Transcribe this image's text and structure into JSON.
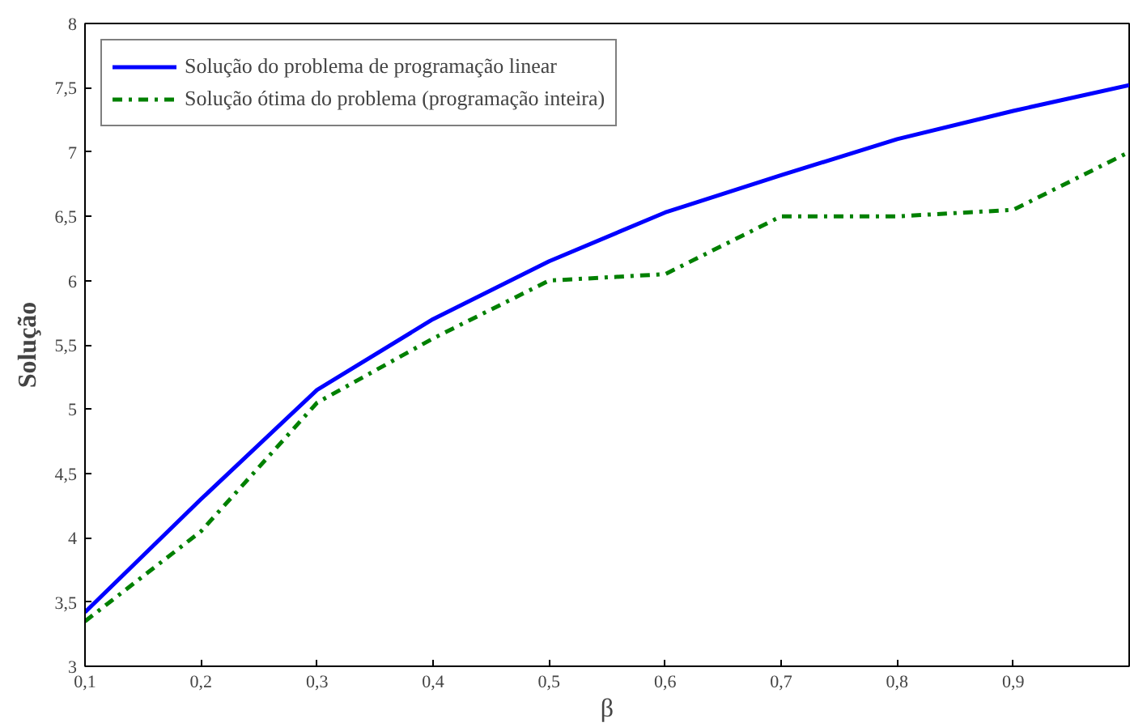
{
  "chart_data": {
    "type": "line",
    "xlabel": "β",
    "ylabel": "Solução",
    "x": [
      0.1,
      0.2,
      0.3,
      0.4,
      0.5,
      0.6,
      0.7,
      0.8,
      0.9,
      1.0
    ],
    "series": [
      {
        "name": "Solução do problema de programação linear",
        "color": "#0000ff",
        "line_style": "solid",
        "values": [
          3.42,
          4.3,
          5.15,
          5.7,
          6.15,
          6.53,
          6.82,
          7.1,
          7.32,
          7.52
        ]
      },
      {
        "name": "Solução ótima do problema (programação inteira)",
        "color": "#008000",
        "line_style": "dashdot",
        "values": [
          3.35,
          4.05,
          5.05,
          5.55,
          6.0,
          6.05,
          6.5,
          6.5,
          6.55,
          7.0
        ]
      }
    ],
    "xlim": [
      0.1,
      1.0
    ],
    "ylim": [
      3,
      8
    ],
    "xticks": [
      {
        "value": 0.1,
        "label": "0,1"
      },
      {
        "value": 0.2,
        "label": "0,2"
      },
      {
        "value": 0.3,
        "label": "0,3"
      },
      {
        "value": 0.4,
        "label": "0,4"
      },
      {
        "value": 0.5,
        "label": "0,5"
      },
      {
        "value": 0.6,
        "label": "0,6"
      },
      {
        "value": 0.7,
        "label": "0,7"
      },
      {
        "value": 0.8,
        "label": "0,8"
      },
      {
        "value": 0.9,
        "label": "0,9"
      }
    ],
    "yticks": [
      3,
      {
        "value": 3.5,
        "label": "3,5"
      },
      4,
      {
        "value": 4.5,
        "label": "4,5"
      },
      5,
      {
        "value": 5.5,
        "label": "5,5"
      },
      6,
      {
        "value": 6.5,
        "label": "6,5"
      },
      7,
      {
        "value": 7.5,
        "label": "7,5"
      },
      8
    ],
    "grid": false,
    "legend": "top left"
  }
}
